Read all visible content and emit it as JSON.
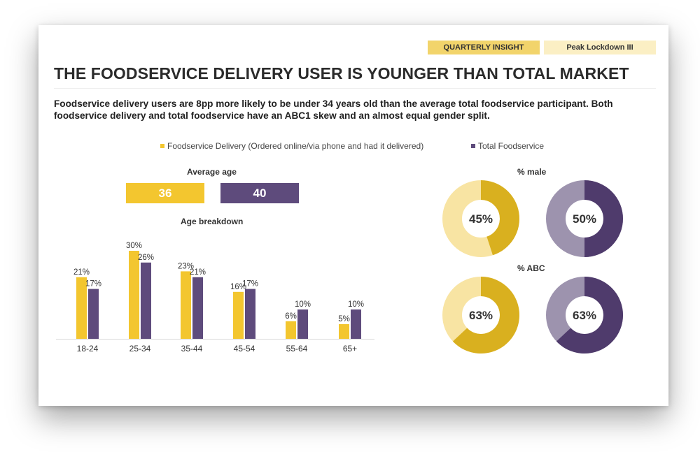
{
  "tags": {
    "insight": "QUARTERLY INSIGHT",
    "period": "Peak Lockdown III"
  },
  "title": "THE FOODSERVICE DELIVERY USER IS YOUNGER THAN TOTAL MARKET",
  "subtitle": "Foodservice delivery users are 8pp more likely to be under 34 years old than the average total foodservice participant. Both foodservice delivery and total foodservice have an ABC1 skew and an almost equal gender split.",
  "legend": {
    "delivery": "Foodservice Delivery (Ordered online/via phone and had it delivered)",
    "total": "Total Foodservice"
  },
  "colors": {
    "delivery": "#F3C62F",
    "total": "#5E4B7C",
    "donut_delivery_fill": "#D9B01F",
    "donut_delivery_rest": "#F8E4A3",
    "donut_total_fill": "#4F3B6C",
    "donut_total_rest": "#9D93AE"
  },
  "average_age": {
    "heading": "Average age",
    "delivery": "36",
    "total": "40"
  },
  "chart_data": [
    {
      "type": "bar",
      "title": "Age breakdown",
      "categories": [
        "18-24",
        "25-34",
        "35-44",
        "45-54",
        "55-64",
        "65+"
      ],
      "series": [
        {
          "name": "Foodservice Delivery (Ordered online/via phone and had it delivered)",
          "values": [
            21,
            30,
            23,
            16,
            6,
            5
          ]
        },
        {
          "name": "Total Foodservice",
          "values": [
            17,
            26,
            21,
            17,
            10,
            10
          ]
        }
      ],
      "value_suffix": "%",
      "ylim": [
        0,
        30
      ]
    },
    {
      "type": "pie",
      "title": "% male",
      "series": [
        {
          "name": "Foodservice Delivery (Ordered online/via phone and had it delivered)",
          "value": 45,
          "label": "45%"
        },
        {
          "name": "Total Foodservice",
          "value": 50,
          "label": "50%"
        }
      ]
    },
    {
      "type": "pie",
      "title": "% ABC",
      "series": [
        {
          "name": "Foodservice Delivery (Ordered online/via phone and had it delivered)",
          "value": 63,
          "label": "63%"
        },
        {
          "name": "Total Foodservice",
          "value": 63,
          "label": "63%"
        }
      ]
    }
  ]
}
